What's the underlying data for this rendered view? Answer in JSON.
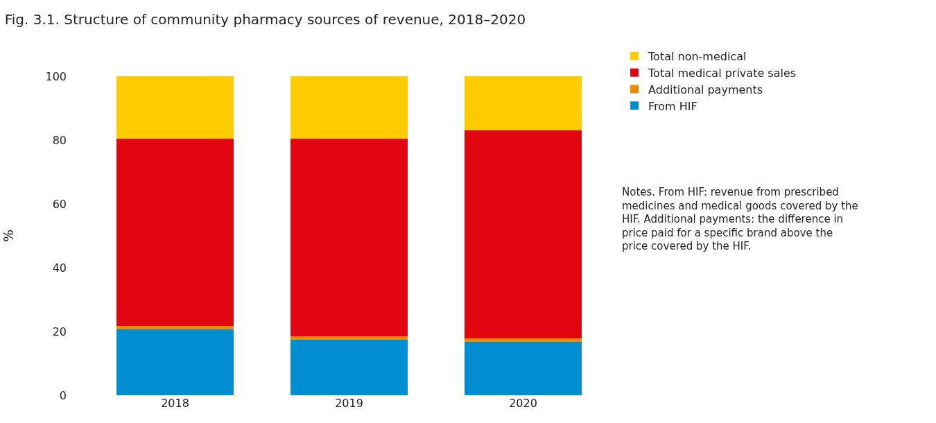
{
  "chart_data": {
    "type": "bar",
    "stacked": true,
    "title": "Fig. 3.1. Structure of community pharmacy sources of revenue, 2018–2020",
    "ylabel": "%",
    "categories": [
      "2018",
      "2019",
      "2020"
    ],
    "series": [
      {
        "name": "From HIF",
        "color": "#008dd2",
        "values": [
          20.7,
          17.4,
          16.7
        ]
      },
      {
        "name": "Additional payments",
        "color": "#f08a00",
        "values": [
          1.1,
          1.1,
          1.1
        ]
      },
      {
        "name": "Total medical private sales",
        "color": "#e20613",
        "values": [
          58.7,
          62.0,
          65.2
        ]
      },
      {
        "name": "Total non-medical",
        "color": "#ffcc00",
        "values": [
          19.5,
          19.5,
          17.0
        ]
      }
    ],
    "ylim": [
      0,
      100
    ],
    "yticks": [
      0,
      20,
      40,
      60,
      80,
      100
    ],
    "legend": "top right",
    "annotations": [
      "Notes. From HIF: revenue from prescribed medicines and medical goods covered by the HIF. Additional payments: the difference in price paid for a specific brand above the price covered by the HIF."
    ]
  }
}
